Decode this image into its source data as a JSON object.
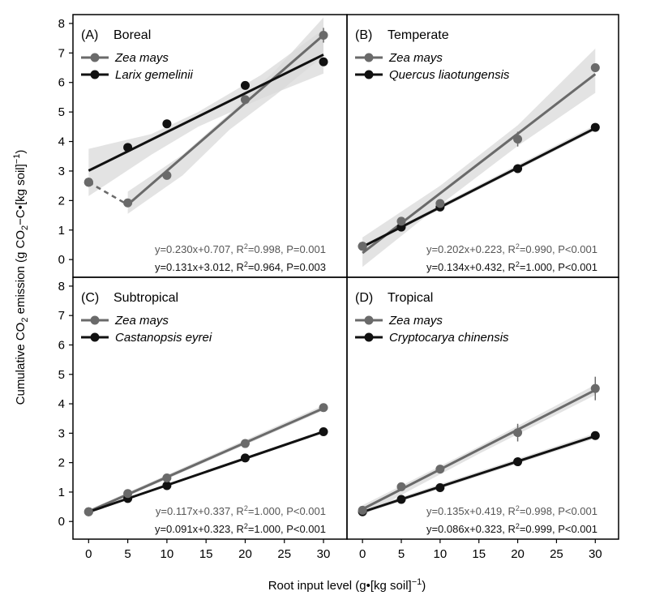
{
  "chart_data": {
    "type": "scatter",
    "xlabel": "Root input level (g•[kg soil]",
    "xlabel_sup": "−1",
    "xlabel_end": ")",
    "ylabel": "Cumulative CO",
    "ylabel_sub": "2",
    "ylabel_mid": " emission (g CO",
    "ylabel_sub2": "2",
    "ylabel_end": "−C•[kg soil]",
    "ylabel_sup": "−1",
    "ylabel_close": ")",
    "xlim": [
      -2,
      33
    ],
    "ylim": [
      -0.6,
      8.3
    ],
    "xticks": [
      0,
      5,
      10,
      15,
      20,
      25,
      30
    ],
    "yticks": [
      0,
      1,
      2,
      3,
      4,
      5,
      6,
      7,
      8
    ],
    "colors": {
      "zea": "#6a6a6a",
      "tree": "#111111",
      "band": "#dadada",
      "eq_zea": "#555555",
      "eq_tree": "#111111"
    },
    "panels": [
      {
        "label": "(A)",
        "title": "Boreal",
        "series": [
          {
            "name": "Zea mays",
            "key": "zea",
            "x": [
              0,
              5,
              10,
              20,
              30
            ],
            "y": [
              2.62,
              1.92,
              2.85,
              5.42,
              7.6
            ],
            "err": [
              0.08,
              0.1,
              0.12,
              0.12,
              0.25
            ],
            "fit": {
              "slope": 0.23,
              "intercept": 0.707,
              "x0": 5,
              "x1": 30,
              "dash_from": 0
            },
            "band": [
              [
                5,
                1.55,
                2.3
              ],
              [
                12,
                2.85,
                3.55
              ],
              [
                18,
                4.4,
                4.95
              ],
              [
                24,
                5.6,
                6.45
              ],
              [
                30,
                6.9,
                8.2
              ]
            ],
            "eq": "y=0.230x+0.707, R",
            "eq_sup": "2",
            "eq_end": "=0.998, P=0.001"
          },
          {
            "name": "Larix gemelinii",
            "key": "tree",
            "x": [
              0,
              5,
              10,
              20,
              30
            ],
            "y": [
              2.62,
              3.8,
              4.6,
              5.9,
              6.7
            ],
            "err": [
              0.08,
              0.08,
              0.08,
              0.1,
              0.1
            ],
            "fit": {
              "slope": 0.131,
              "intercept": 3.012,
              "x0": 0,
              "x1": 30
            },
            "band": [
              [
                0,
                2.15,
                3.75
              ],
              [
                8,
                3.55,
                4.25
              ],
              [
                14,
                4.5,
                5.0
              ],
              [
                22,
                5.45,
                6.25
              ],
              [
                30,
                6.3,
                7.8
              ]
            ],
            "eq": "y=0.131x+3.012, R",
            "eq_sup": "2",
            "eq_end": "=0.964, P=0.003"
          }
        ]
      },
      {
        "label": "(B)",
        "title": "Temperate",
        "series": [
          {
            "name": "Zea mays",
            "key": "zea",
            "x": [
              0,
              5,
              10,
              20,
              30
            ],
            "y": [
              0.45,
              1.3,
              1.9,
              4.08,
              6.5
            ],
            "err": [
              0.08,
              0.08,
              0.08,
              0.25,
              0.12
            ],
            "fit": {
              "slope": 0.202,
              "intercept": 0.223,
              "x0": 0,
              "x1": 30
            },
            "band": [
              [
                0,
                -0.25,
                0.75
              ],
              [
                10,
                1.85,
                2.5
              ],
              [
                20,
                3.85,
                4.55
              ],
              [
                30,
                5.65,
                7.15
              ]
            ],
            "eq": "y=0.202x+0.223, R",
            "eq_sup": "2",
            "eq_end": "=0.990, P<0.001"
          },
          {
            "name": "Quercus liaotungensis",
            "key": "tree",
            "x": [
              0,
              5,
              10,
              20,
              30
            ],
            "y": [
              0.45,
              1.1,
              1.78,
              3.08,
              4.48
            ],
            "err": [
              0.05,
              0.05,
              0.05,
              0.05,
              0.05
            ],
            "fit": {
              "slope": 0.134,
              "intercept": 0.432,
              "x0": 0,
              "x1": 30
            },
            "band": [
              [
                0,
                0.36,
                0.5
              ],
              [
                30,
                4.38,
                4.56
              ]
            ],
            "eq": "y=0.134x+0.432, R",
            "eq_sup": "2",
            "eq_end": "=1.000, P<0.001"
          }
        ]
      },
      {
        "label": "(C)",
        "title": "Subtropical",
        "series": [
          {
            "name": "Zea mays",
            "key": "zea",
            "x": [
              0,
              5,
              10,
              20,
              30
            ],
            "y": [
              0.33,
              0.95,
              1.48,
              2.65,
              3.87
            ],
            "err": [
              0.05,
              0.05,
              0.05,
              0.06,
              0.08
            ],
            "fit": {
              "slope": 0.117,
              "intercept": 0.337,
              "x0": 0,
              "x1": 30
            },
            "band": [
              [
                0,
                0.28,
                0.4
              ],
              [
                30,
                3.77,
                3.95
              ]
            ],
            "eq": "y=0.117x+0.337, R",
            "eq_sup": "2",
            "eq_end": "=1.000, P<0.001"
          },
          {
            "name": "Castanopsis eyrei",
            "key": "tree",
            "x": [
              0,
              5,
              10,
              20,
              30
            ],
            "y": [
              0.33,
              0.78,
              1.22,
              2.16,
              3.05
            ],
            "err": [
              0.04,
              0.04,
              0.04,
              0.04,
              0.05
            ],
            "fit": {
              "slope": 0.091,
              "intercept": 0.323,
              "x0": 0,
              "x1": 30
            },
            "band": [
              [
                0,
                0.29,
                0.36
              ],
              [
                30,
                3.0,
                3.1
              ]
            ],
            "eq": "y=0.091x+0.323, R",
            "eq_sup": "2",
            "eq_end": "=1.000, P<0.001"
          }
        ]
      },
      {
        "label": "(D)",
        "title": "Tropical",
        "series": [
          {
            "name": "Zea mays",
            "key": "zea",
            "x": [
              0,
              5,
              10,
              20,
              30
            ],
            "y": [
              0.38,
              1.18,
              1.78,
              3.02,
              4.52
            ],
            "err": [
              0.05,
              0.08,
              0.08,
              0.3,
              0.4
            ],
            "fit": {
              "slope": 0.135,
              "intercept": 0.419,
              "x0": 0,
              "x1": 30
            },
            "band": [
              [
                0,
                0.2,
                0.55
              ],
              [
                15,
                2.3,
                2.55
              ],
              [
                30,
                4.3,
                4.65
              ]
            ],
            "eq": "y=0.135x+0.419, R",
            "eq_sup": "2",
            "eq_end": "=0.998, P<0.001"
          },
          {
            "name": "Cryptocarya chinensis",
            "key": "tree",
            "x": [
              0,
              5,
              10,
              20,
              30
            ],
            "y": [
              0.33,
              0.75,
              1.15,
              2.03,
              2.92
            ],
            "err": [
              0.04,
              0.04,
              0.05,
              0.05,
              0.06
            ],
            "fit": {
              "slope": 0.086,
              "intercept": 0.323,
              "x0": 0,
              "x1": 30
            },
            "band": [
              [
                0,
                0.26,
                0.4
              ],
              [
                30,
                2.82,
                3.0
              ]
            ],
            "eq": "y=0.086x+0.323, R",
            "eq_sup": "2",
            "eq_end": "=0.999, P<0.001"
          }
        ]
      }
    ]
  }
}
